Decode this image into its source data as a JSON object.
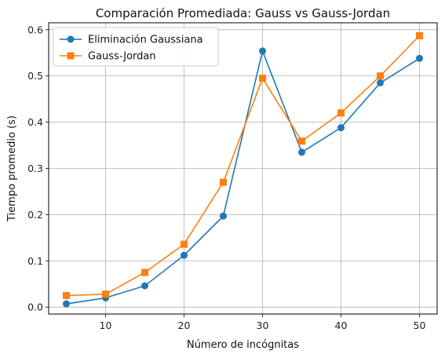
{
  "chart_data": {
    "type": "line",
    "title": "Comparación Promediada: Gauss vs Gauss-Jordan",
    "xlabel": "Número de incógnitas",
    "ylabel": "Tiempo promedio (s)",
    "x": [
      5,
      10,
      15,
      20,
      25,
      30,
      35,
      40,
      45,
      50
    ],
    "xlim": [
      2.75,
      52.25
    ],
    "ylim": [
      -0.015,
      0.615
    ],
    "xticks": [
      10,
      20,
      30,
      40,
      50
    ],
    "yticks": [
      0.0,
      0.1,
      0.2,
      0.3,
      0.4,
      0.5,
      0.6
    ],
    "grid": true,
    "legend_position": "top-left",
    "series": [
      {
        "name": "Eliminación Gaussiana",
        "color": "#1f77b4",
        "marker": "circle",
        "values": [
          0.007,
          0.02,
          0.046,
          0.112,
          0.197,
          0.554,
          0.335,
          0.388,
          0.485,
          0.538
        ]
      },
      {
        "name": "Gauss-Jordan",
        "color": "#ff7f0e",
        "marker": "square",
        "values": [
          0.025,
          0.028,
          0.075,
          0.136,
          0.27,
          0.495,
          0.359,
          0.42,
          0.5,
          0.587
        ]
      }
    ]
  }
}
